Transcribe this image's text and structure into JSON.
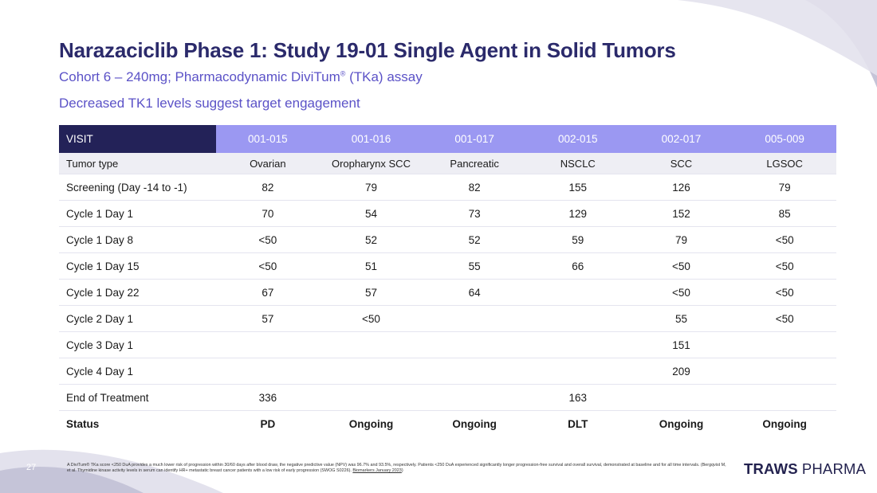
{
  "slide": {
    "title": "Narazaciclib Phase 1: Study 19-01 Single Agent in Solid Tumors",
    "subtitle_main": "Cohort 6 – 240mg; Pharmacodynamic DiviTum",
    "subtitle_mark": "®",
    "subtitle_tail": " (TKa) assay",
    "subtitle2": "Decreased TK1 levels suggest target engagement",
    "page_number": "27"
  },
  "table": {
    "header": {
      "label": "VISIT",
      "cols": [
        "001-015",
        "001-016",
        "001-017",
        "002-015",
        "002-017",
        "005-009"
      ]
    },
    "tumor_row": {
      "label": "Tumor type",
      "cells": [
        "Ovarian",
        "Oropharynx SCC",
        "Pancreatic",
        "NSCLC",
        "SCC",
        "LGSOC"
      ]
    },
    "rows": [
      {
        "label": "Screening (Day -14 to -1)",
        "cells": [
          "82",
          "79",
          "82",
          "155",
          "126",
          "79"
        ]
      },
      {
        "label": "Cycle 1 Day 1",
        "cells": [
          "70",
          "54",
          "73",
          "129",
          "152",
          "85"
        ]
      },
      {
        "label": "Cycle 1 Day 8",
        "cells": [
          "<50",
          "52",
          "52",
          "59",
          "79",
          "<50"
        ]
      },
      {
        "label": "Cycle 1 Day 15",
        "cells": [
          "<50",
          "51",
          "55",
          "66",
          "<50",
          "<50"
        ]
      },
      {
        "label": "Cycle 1 Day 22",
        "cells": [
          "67",
          "57",
          "64",
          "",
          "<50",
          "<50"
        ]
      },
      {
        "label": "Cycle 2 Day 1",
        "cells": [
          "57",
          "<50",
          "",
          "",
          "55",
          "<50"
        ]
      },
      {
        "label": "Cycle 3 Day 1",
        "cells": [
          "",
          "",
          "",
          "",
          "151",
          ""
        ]
      },
      {
        "label": "Cycle 4 Day 1",
        "cells": [
          "",
          "",
          "",
          "",
          "209",
          ""
        ]
      },
      {
        "label": "End of Treatment",
        "cells": [
          "336",
          "",
          "",
          "163",
          "",
          ""
        ]
      }
    ],
    "status_row": {
      "label": "Status",
      "cells": [
        "PD",
        "Ongoing",
        "Ongoing",
        "DLT",
        "Ongoing",
        "Ongoing"
      ]
    }
  },
  "footnote": {
    "text": "A DiviTum® TKa score <250 DuA provides a much lower risk of progression within 30/60 days after blood draw, the negative predictive value (NPV) was 96.7% and 93.5%, respectively. Patients <250 DuA experienced significantly longer progression-free survival and overall survival, demonstrated at baseline and for all time intervals. (Bergqvist M, et al. Thymidine kinase activity levels in serum can identify HR+ metastatic breast cancer patients with a low risk of early progression (SWOG S0226). ",
    "link": "Biomarkers January 2023",
    "suffix": ")"
  },
  "logo": {
    "word1": "TRAWS",
    "word2": "PHARMA"
  },
  "colors": {
    "title": "#2b2a6b",
    "subtitle": "#5b52c7",
    "header_bg": "#9b98f2",
    "visit_header_bg": "#232258",
    "tumor_row_bg": "#eeeef4",
    "decor": "#c5c4d8"
  }
}
